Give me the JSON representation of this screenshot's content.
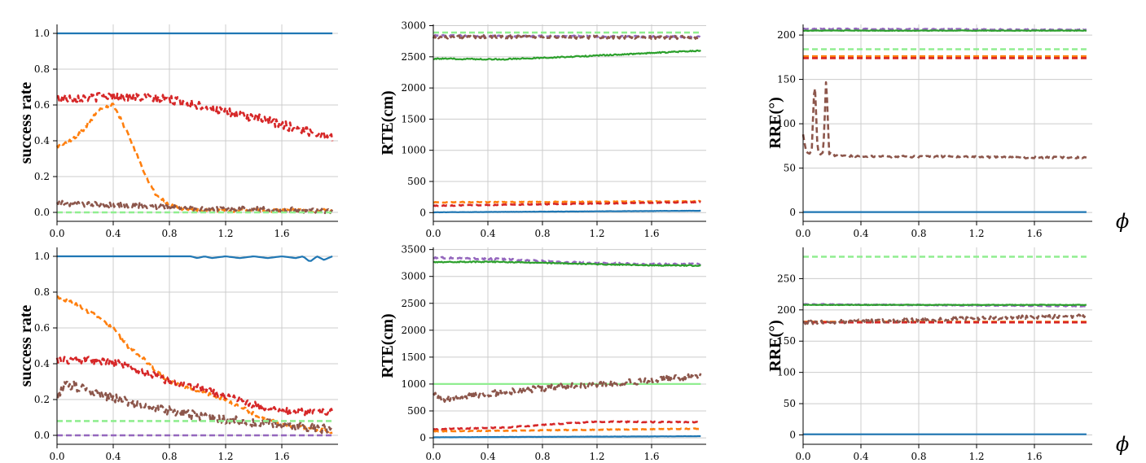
{
  "colors": {
    "blue": "#1f77b4",
    "orange": "#ff7f0e",
    "green": "#2ca02c",
    "red": "#d62728",
    "purple": "#9467bd",
    "brown": "#8c564b",
    "lightgreen": "#90ee90"
  },
  "x_axis_label": "ϕ",
  "chart_data": [
    {
      "type": "line",
      "ylabel": "success rate",
      "xlim": [
        0,
        2.0
      ],
      "ylim": [
        -0.05,
        1.05
      ],
      "xticks": [
        0.0,
        0.4,
        0.8,
        1.2,
        1.6
      ],
      "xtick_labels": [
        "0.0",
        "0.4",
        "0.8",
        "1.2",
        "1.6"
      ],
      "yticks": [
        0.0,
        0.2,
        0.4,
        0.6,
        0.8,
        1.0
      ],
      "ytick_labels": [
        "0.0",
        "0.2",
        "0.4",
        "0.6",
        "0.8",
        "1.0"
      ],
      "show_phi": false,
      "series": [
        {
          "color": "blue",
          "style": "solid",
          "noise": 0,
          "x": [
            0,
            1.96
          ],
          "y": [
            1.0,
            1.0
          ]
        },
        {
          "color": "red",
          "style": "dashed",
          "noise": 0.025,
          "x": [
            0,
            0.2,
            0.4,
            0.6,
            0.8,
            1.0,
            1.2,
            1.4,
            1.6,
            1.8,
            1.96
          ],
          "y": [
            0.64,
            0.64,
            0.65,
            0.64,
            0.63,
            0.6,
            0.56,
            0.53,
            0.49,
            0.45,
            0.42
          ]
        },
        {
          "color": "orange",
          "style": "dashed",
          "noise": 0.01,
          "x": [
            0,
            0.1,
            0.2,
            0.3,
            0.4,
            0.5,
            0.6,
            0.7,
            0.8,
            0.9,
            1.0,
            1.2,
            1.6,
            1.96
          ],
          "y": [
            0.37,
            0.4,
            0.47,
            0.58,
            0.6,
            0.45,
            0.26,
            0.1,
            0.04,
            0.02,
            0.01,
            0.01,
            0.01,
            0.01
          ]
        },
        {
          "color": "brown",
          "style": "dashed",
          "noise": 0.015,
          "x": [
            0,
            0.5,
            1.0,
            1.5,
            1.96
          ],
          "y": [
            0.05,
            0.04,
            0.02,
            0.015,
            0.01
          ]
        },
        {
          "color": "lightgreen",
          "style": "dashed",
          "noise": 0,
          "x": [
            0,
            1.96
          ],
          "y": [
            0.0,
            0.0
          ]
        }
      ]
    },
    {
      "type": "line",
      "ylabel": "RTE(cm)",
      "xlim": [
        0,
        2.0
      ],
      "ylim": [
        -140,
        3020
      ],
      "xticks": [
        0.0,
        0.4,
        0.8,
        1.2,
        1.6
      ],
      "xtick_labels": [
        "0.0",
        "0.4",
        "0.8",
        "1.2",
        "1.6"
      ],
      "yticks": [
        0,
        500,
        1000,
        1500,
        2000,
        2500,
        3000
      ],
      "ytick_labels": [
        "0",
        "500",
        "1000",
        "1500",
        "2000",
        "2500",
        "3000"
      ],
      "show_phi": false,
      "series": [
        {
          "color": "lightgreen",
          "style": "dashed",
          "noise": 0,
          "x": [
            0,
            1.96
          ],
          "y": [
            2890,
            2890
          ]
        },
        {
          "color": "purple",
          "style": "dashed",
          "noise": 12,
          "x": [
            0,
            1.96
          ],
          "y": [
            2840,
            2820
          ]
        },
        {
          "color": "brown",
          "style": "dashed",
          "noise": 25,
          "x": [
            0,
            1.96
          ],
          "y": [
            2820,
            2810
          ]
        },
        {
          "color": "green",
          "style": "solid",
          "noise": 10,
          "x": [
            0,
            0.5,
            1.0,
            1.5,
            1.96
          ],
          "y": [
            2470,
            2460,
            2500,
            2550,
            2600
          ]
        },
        {
          "color": "orange",
          "style": "dashed",
          "noise": 6,
          "x": [
            0,
            1.96
          ],
          "y": [
            165,
            180
          ]
        },
        {
          "color": "red",
          "style": "dashed",
          "noise": 6,
          "x": [
            0,
            1.96
          ],
          "y": [
            110,
            170
          ]
        },
        {
          "color": "blue",
          "style": "solid",
          "noise": 2,
          "x": [
            0,
            1.96
          ],
          "y": [
            5,
            30
          ]
        }
      ]
    },
    {
      "type": "line",
      "ylabel": "RRE(°)",
      "xlim": [
        0,
        2.0
      ],
      "ylim": [
        -10,
        212
      ],
      "xticks": [
        0.0,
        0.4,
        0.8,
        1.2,
        1.6
      ],
      "xtick_labels": [
        "0.0",
        "0.4",
        "0.8",
        "1.2",
        "1.6"
      ],
      "yticks": [
        0,
        50,
        100,
        150,
        200
      ],
      "ytick_labels": [
        "0",
        "50",
        "100",
        "150",
        "200"
      ],
      "show_phi": true,
      "series": [
        {
          "color": "purple",
          "style": "dashed",
          "noise": 0.5,
          "x": [
            0,
            1.96
          ],
          "y": [
            207,
            206
          ]
        },
        {
          "color": "green",
          "style": "solid",
          "noise": 0.3,
          "x": [
            0,
            1.96
          ],
          "y": [
            205,
            205
          ]
        },
        {
          "color": "lightgreen",
          "style": "dashed",
          "noise": 0,
          "x": [
            0,
            1.96
          ],
          "y": [
            184,
            184
          ]
        },
        {
          "color": "orange",
          "style": "dashed",
          "noise": 0,
          "x": [
            0,
            1.96
          ],
          "y": [
            176,
            176
          ]
        },
        {
          "color": "red",
          "style": "dashed",
          "noise": 0,
          "x": [
            0,
            1.96
          ],
          "y": [
            174,
            174
          ]
        },
        {
          "color": "brown",
          "style": "dashed",
          "noise": 1,
          "x": [
            0,
            0.02,
            0.04,
            0.06,
            0.08,
            0.1,
            0.12,
            0.14,
            0.16,
            0.18,
            0.2,
            0.22,
            0.5,
            1.0,
            1.5,
            1.96
          ],
          "y": [
            88,
            68,
            66,
            70,
            152,
            70,
            66,
            68,
            153,
            66,
            67,
            64,
            63,
            63,
            62,
            62
          ]
        },
        {
          "color": "blue",
          "style": "solid",
          "noise": 0,
          "x": [
            0,
            1.96
          ],
          "y": [
            0.5,
            0.5
          ]
        }
      ]
    },
    {
      "type": "line",
      "ylabel": "success rate",
      "xlim": [
        0,
        2.0
      ],
      "ylim": [
        -0.05,
        1.05
      ],
      "xticks": [
        0.0,
        0.4,
        0.8,
        1.2,
        1.6
      ],
      "xtick_labels": [
        "0.0",
        "0.4",
        "0.8",
        "1.2",
        "1.6"
      ],
      "yticks": [
        0.0,
        0.2,
        0.4,
        0.6,
        0.8,
        1.0
      ],
      "ytick_labels": [
        "0.0",
        "0.2",
        "0.4",
        "0.6",
        "0.8",
        "1.0"
      ],
      "show_phi": false,
      "series": [
        {
          "color": "blue",
          "style": "solid",
          "noise": 0,
          "x": [
            0,
            0.95,
            1.0,
            1.05,
            1.1,
            1.2,
            1.3,
            1.4,
            1.5,
            1.6,
            1.7,
            1.75,
            1.8,
            1.85,
            1.9,
            1.96
          ],
          "y": [
            1.0,
            1.0,
            0.99,
            1.0,
            0.99,
            1.0,
            0.99,
            1.0,
            0.99,
            1.0,
            0.99,
            1.0,
            0.97,
            1.0,
            0.98,
            1.0
          ]
        },
        {
          "color": "orange",
          "style": "dashed",
          "noise": 0.01,
          "x": [
            0,
            0.1,
            0.2,
            0.3,
            0.4,
            0.5,
            0.6,
            0.7,
            0.8,
            1.0,
            1.2,
            1.4,
            1.6,
            1.8,
            1.96
          ],
          "y": [
            0.77,
            0.75,
            0.7,
            0.66,
            0.6,
            0.5,
            0.44,
            0.36,
            0.3,
            0.25,
            0.2,
            0.12,
            0.06,
            0.04,
            0.02
          ]
        },
        {
          "color": "red",
          "style": "dashed",
          "noise": 0.02,
          "x": [
            0,
            0.2,
            0.4,
            0.6,
            0.8,
            1.0,
            1.2,
            1.4,
            1.6,
            1.8,
            1.96
          ],
          "y": [
            0.42,
            0.42,
            0.41,
            0.36,
            0.3,
            0.27,
            0.22,
            0.17,
            0.14,
            0.13,
            0.13
          ]
        },
        {
          "color": "brown",
          "style": "dashed",
          "noise": 0.025,
          "x": [
            0,
            0.05,
            0.1,
            0.3,
            0.5,
            0.7,
            1.0,
            1.3,
            1.6,
            1.96
          ],
          "y": [
            0.2,
            0.28,
            0.28,
            0.23,
            0.19,
            0.15,
            0.11,
            0.08,
            0.06,
            0.03
          ]
        },
        {
          "color": "lightgreen",
          "style": "dashed",
          "noise": 0,
          "x": [
            0,
            1.96
          ],
          "y": [
            0.08,
            0.08
          ]
        },
        {
          "color": "purple",
          "style": "dashed",
          "noise": 0,
          "x": [
            0,
            1.96
          ],
          "y": [
            0.0,
            0.0
          ]
        }
      ]
    },
    {
      "type": "line",
      "ylabel": "RTE(cm)",
      "xlim": [
        0,
        2.0
      ],
      "ylim": [
        -120,
        3540
      ],
      "xticks": [
        0.0,
        0.4,
        0.8,
        1.2,
        1.6
      ],
      "xtick_labels": [
        "0.0",
        "0.4",
        "0.8",
        "1.2",
        "1.6"
      ],
      "yticks": [
        0,
        500,
        1000,
        1500,
        2000,
        2500,
        3000,
        3500
      ],
      "ytick_labels": [
        "0",
        "500",
        "1000",
        "1500",
        "2000",
        "2500",
        "3000",
        "3500"
      ],
      "show_phi": false,
      "series": [
        {
          "color": "purple",
          "style": "dashed",
          "noise": 15,
          "x": [
            0,
            0.5,
            1.0,
            1.5,
            1.96
          ],
          "y": [
            3350,
            3320,
            3260,
            3230,
            3230
          ]
        },
        {
          "color": "green",
          "style": "solid",
          "noise": 10,
          "x": [
            0,
            0.5,
            1.0,
            1.5,
            1.96
          ],
          "y": [
            3270,
            3270,
            3240,
            3210,
            3200
          ]
        },
        {
          "color": "lightgreen",
          "style": "solid",
          "noise": 0,
          "x": [
            0,
            1.96
          ],
          "y": [
            1000,
            1000
          ]
        },
        {
          "color": "brown",
          "style": "dashed",
          "noise": 60,
          "x": [
            0,
            0.05,
            0.1,
            0.5,
            1.0,
            1.5,
            1.96
          ],
          "y": [
            860,
            700,
            720,
            850,
            960,
            1050,
            1150
          ]
        },
        {
          "color": "red",
          "style": "dashed",
          "noise": 10,
          "x": [
            0,
            0.5,
            1.0,
            1.2,
            1.96
          ],
          "y": [
            160,
            190,
            270,
            300,
            290
          ]
        },
        {
          "color": "orange",
          "style": "dashed",
          "noise": 6,
          "x": [
            0,
            1.96
          ],
          "y": [
            120,
            170
          ]
        },
        {
          "color": "blue",
          "style": "solid",
          "noise": 2,
          "x": [
            0,
            1.96
          ],
          "y": [
            10,
            30
          ]
        }
      ]
    },
    {
      "type": "line",
      "ylabel": "RRE(°)",
      "xlim": [
        0,
        2.0
      ],
      "ylim": [
        -15,
        300
      ],
      "xticks": [
        0.0,
        0.4,
        0.8,
        1.2,
        1.6
      ],
      "xtick_labels": [
        "0.0",
        "0.4",
        "0.8",
        "1.2",
        "1.6"
      ],
      "yticks": [
        0,
        50,
        100,
        150,
        200,
        250
      ],
      "ytick_labels": [
        "0",
        "50",
        "100",
        "150",
        "200",
        "250"
      ],
      "show_phi": true,
      "series": [
        {
          "color": "lightgreen",
          "style": "dashed",
          "noise": 0,
          "x": [
            0,
            1.96
          ],
          "y": [
            285,
            285
          ]
        },
        {
          "color": "purple",
          "style": "dashed",
          "noise": 0.6,
          "x": [
            0,
            1.96
          ],
          "y": [
            209,
            206
          ]
        },
        {
          "color": "green",
          "style": "solid",
          "noise": 0.4,
          "x": [
            0,
            1.96
          ],
          "y": [
            208,
            208
          ]
        },
        {
          "color": "orange",
          "style": "dashed",
          "noise": 0,
          "x": [
            0,
            1.96
          ],
          "y": [
            181,
            181
          ]
        },
        {
          "color": "red",
          "style": "dashed",
          "noise": 0,
          "x": [
            0,
            1.96
          ],
          "y": [
            180,
            180
          ]
        },
        {
          "color": "brown",
          "style": "dashed",
          "noise": 3,
          "x": [
            0,
            0.5,
            1.0,
            1.5,
            1.96
          ],
          "y": [
            180,
            182,
            185,
            188,
            190
          ]
        },
        {
          "color": "blue",
          "style": "solid",
          "noise": 0,
          "x": [
            0,
            1.96
          ],
          "y": [
            1,
            1
          ]
        }
      ]
    }
  ]
}
